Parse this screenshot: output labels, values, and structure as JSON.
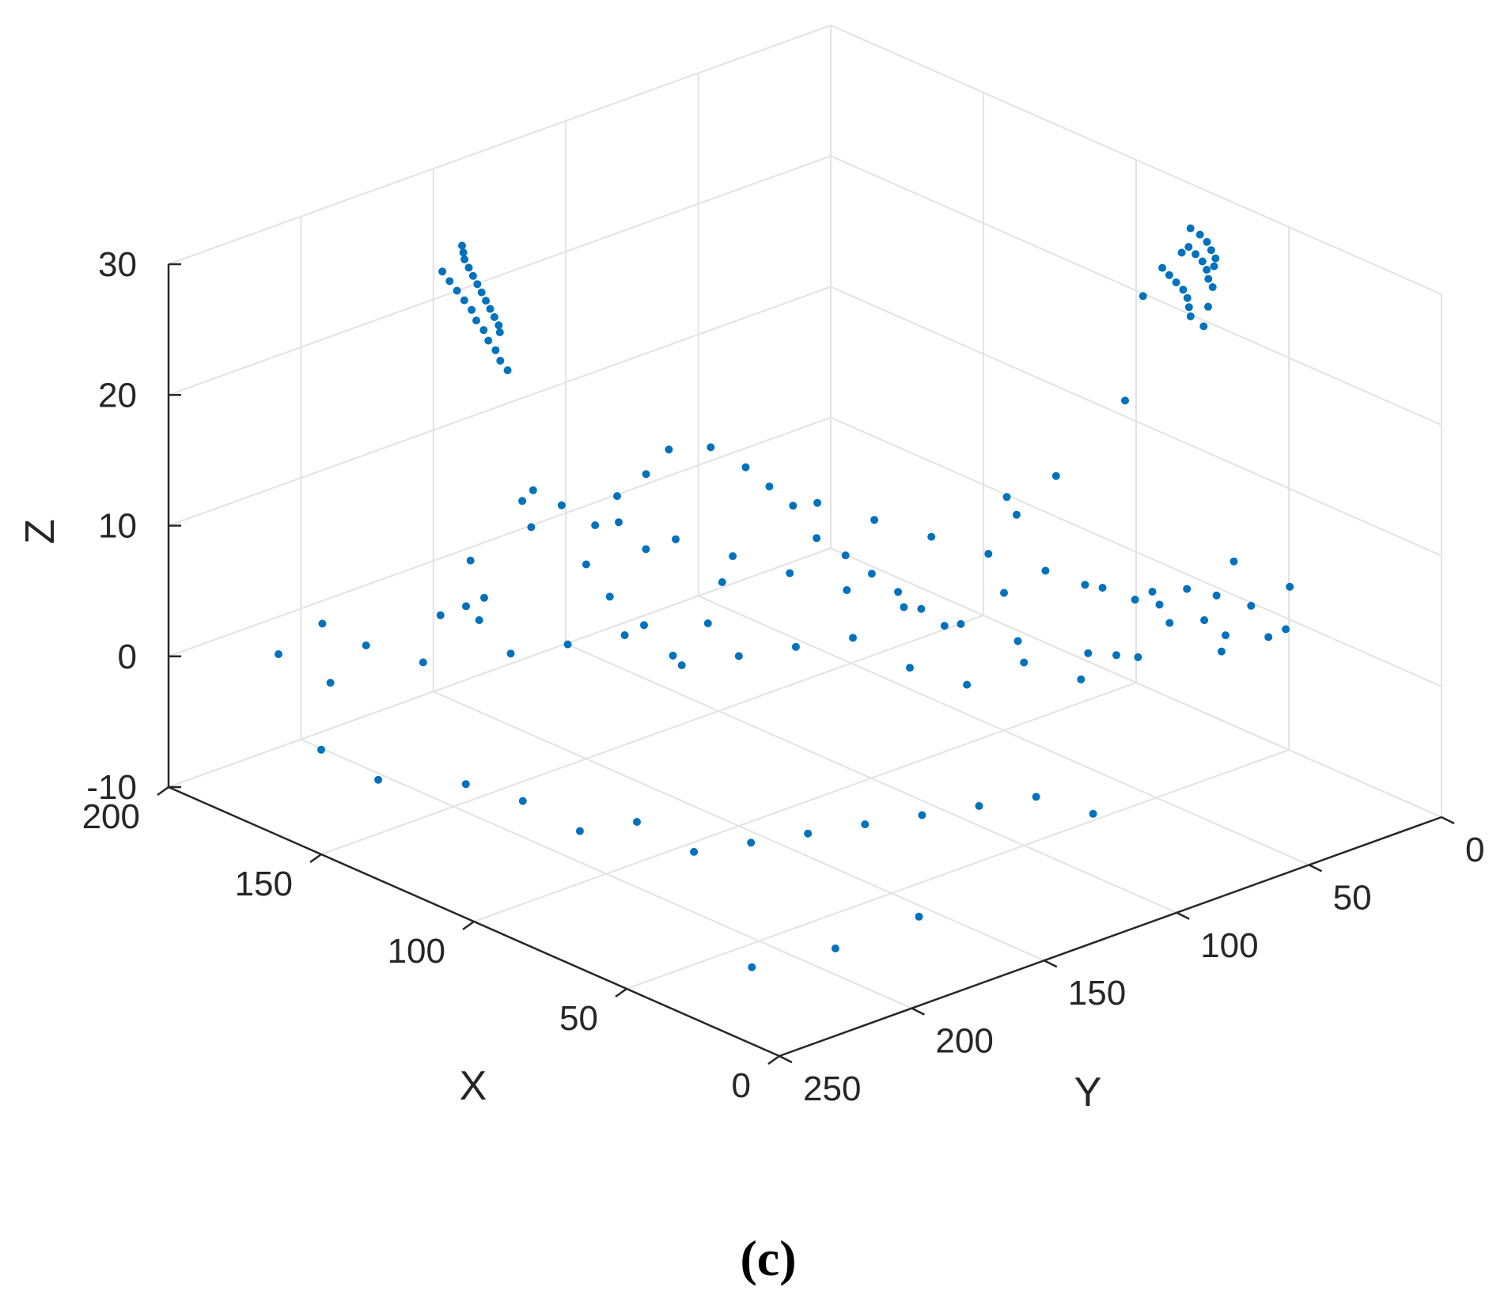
{
  "caption": "(c)",
  "chart_data": {
    "type": "scatter",
    "title": "",
    "xlabel": "X",
    "ylabel": "Y",
    "zlabel": "Z",
    "xlim": [
      0,
      200
    ],
    "ylim": [
      0,
      250
    ],
    "zlim": [
      -10,
      30
    ],
    "xticks": [
      "0",
      "50",
      "100",
      "150",
      "200"
    ],
    "yticks": [
      "0",
      "50",
      "100",
      "150",
      "200",
      "250"
    ],
    "zticks": [
      "-10",
      "0",
      "10",
      "20",
      "30"
    ],
    "grid": true,
    "colors": {
      "marker": "#0072BD",
      "grid": "#e3e3e3",
      "axis": "#262626"
    },
    "points": [
      [
        175,
        168,
        28
      ],
      [
        172,
        171,
        28
      ],
      [
        169,
        174,
        28
      ],
      [
        165,
        177,
        28
      ],
      [
        161,
        180,
        28
      ],
      [
        157,
        183,
        28
      ],
      [
        153,
        186,
        28
      ],
      [
        149,
        189,
        28
      ],
      [
        145,
        192,
        28
      ],
      [
        141,
        195,
        28
      ],
      [
        137,
        198,
        28
      ],
      [
        134,
        201,
        28
      ],
      [
        178,
        172,
        26
      ],
      [
        173,
        175,
        26
      ],
      [
        168,
        178,
        26
      ],
      [
        163,
        181,
        26
      ],
      [
        158,
        184,
        26
      ],
      [
        153,
        188,
        26
      ],
      [
        148,
        191,
        26
      ],
      [
        143,
        195,
        26
      ],
      [
        138,
        198,
        26
      ],
      [
        133,
        202,
        26
      ],
      [
        128,
        205,
        26
      ],
      [
        45,
        34,
        30
      ],
      [
        48,
        30,
        30
      ],
      [
        52,
        27,
        30
      ],
      [
        56,
        24,
        30
      ],
      [
        60,
        22,
        30
      ],
      [
        64,
        21,
        30
      ],
      [
        42,
        38,
        29
      ],
      [
        46,
        35,
        29
      ],
      [
        50,
        31,
        29
      ],
      [
        54,
        28,
        29
      ],
      [
        58,
        26,
        29
      ],
      [
        62,
        24,
        29
      ],
      [
        66,
        22,
        28
      ],
      [
        40,
        42,
        28
      ],
      [
        38,
        46,
        27
      ],
      [
        44,
        44,
        27
      ],
      [
        48,
        40,
        27
      ],
      [
        52,
        36,
        27
      ],
      [
        56,
        33,
        27
      ],
      [
        60,
        31,
        27
      ],
      [
        64,
        29,
        27
      ],
      [
        68,
        27,
        27
      ],
      [
        70,
        32,
        25
      ],
      [
        104,
        156,
        19
      ],
      [
        96,
        152,
        18
      ],
      [
        90,
        150,
        17
      ],
      [
        84,
        148,
        16
      ],
      [
        78,
        146,
        14
      ],
      [
        72,
        142,
        13
      ],
      [
        66,
        139,
        12
      ],
      [
        60,
        136,
        11
      ],
      [
        55,
        133,
        10
      ],
      [
        50,
        130,
        9
      ],
      [
        40,
        118,
        19
      ],
      [
        42,
        112,
        17
      ],
      [
        36,
        104,
        20
      ],
      [
        30,
        100,
        12
      ],
      [
        60,
        96,
        8
      ],
      [
        18,
        102,
        8
      ],
      [
        62,
        48,
        19
      ],
      [
        120,
        162,
        10
      ],
      [
        55,
        70,
        2
      ],
      [
        65,
        85,
        3
      ],
      [
        75,
        95,
        4
      ],
      [
        85,
        105,
        5
      ],
      [
        95,
        115,
        6
      ],
      [
        105,
        125,
        7
      ],
      [
        115,
        135,
        8
      ],
      [
        125,
        145,
        9
      ],
      [
        135,
        155,
        10
      ],
      [
        145,
        165,
        11
      ],
      [
        150,
        170,
        12
      ],
      [
        90,
        140,
        4
      ],
      [
        80,
        130,
        5
      ],
      [
        70,
        120,
        3
      ],
      [
        60,
        110,
        2
      ],
      [
        50,
        100,
        4
      ],
      [
        40,
        90,
        3
      ],
      [
        30,
        80,
        5
      ],
      [
        100,
        150,
        3
      ],
      [
        110,
        160,
        2
      ],
      [
        120,
        170,
        4
      ],
      [
        130,
        180,
        3
      ],
      [
        140,
        190,
        2
      ],
      [
        160,
        200,
        0
      ],
      [
        170,
        210,
        1
      ],
      [
        180,
        215,
        2
      ],
      [
        190,
        220,
        -1
      ],
      [
        150,
        205,
        5
      ],
      [
        140,
        200,
        7
      ],
      [
        20,
        60,
        5
      ],
      [
        30,
        55,
        6
      ],
      [
        40,
        50,
        7
      ],
      [
        50,
        45,
        3
      ],
      [
        60,
        40,
        4
      ],
      [
        70,
        35,
        2
      ],
      [
        10,
        70,
        8
      ],
      [
        15,
        40,
        9
      ],
      [
        25,
        30,
        4
      ],
      [
        35,
        25,
        2
      ],
      [
        45,
        20,
        3
      ],
      [
        55,
        15,
        5
      ],
      [
        65,
        10,
        1
      ],
      [
        75,
        20,
        0
      ],
      [
        85,
        30,
        1
      ],
      [
        95,
        40,
        2
      ],
      [
        105,
        50,
        3
      ],
      [
        115,
        60,
        4
      ],
      [
        125,
        70,
        5
      ],
      [
        135,
        80,
        6
      ],
      [
        30,
        140,
        -2
      ],
      [
        40,
        150,
        -3
      ],
      [
        50,
        160,
        -4
      ],
      [
        60,
        170,
        -5
      ],
      [
        70,
        180,
        -6
      ],
      [
        20,
        130,
        -1
      ],
      [
        80,
        190,
        -7
      ],
      [
        90,
        200,
        -5
      ],
      [
        100,
        210,
        -6
      ],
      [
        110,
        220,
        -4
      ],
      [
        120,
        230,
        -3
      ],
      [
        10,
        120,
        -2
      ],
      [
        15,
        180,
        -6
      ],
      [
        25,
        200,
        -8
      ],
      [
        35,
        220,
        -9
      ],
      [
        140,
        240,
        -4
      ],
      [
        150,
        250,
        -2
      ],
      [
        160,
        235,
        1
      ],
      [
        168,
        98,
        8
      ],
      [
        172,
        102,
        6
      ],
      [
        178,
        106,
        4
      ],
      [
        180,
        112,
        2
      ],
      [
        176,
        120,
        0
      ],
      [
        170,
        118,
        -2
      ],
      [
        164,
        112,
        -4
      ],
      [
        158,
        108,
        -6
      ],
      [
        150,
        104,
        -3
      ],
      [
        154,
        94,
        -1
      ],
      [
        190,
        128,
        4
      ],
      [
        194,
        120,
        1
      ],
      [
        200,
        136,
        -1
      ],
      [
        198,
        140,
        -4
      ],
      [
        185,
        150,
        -3
      ]
    ]
  }
}
